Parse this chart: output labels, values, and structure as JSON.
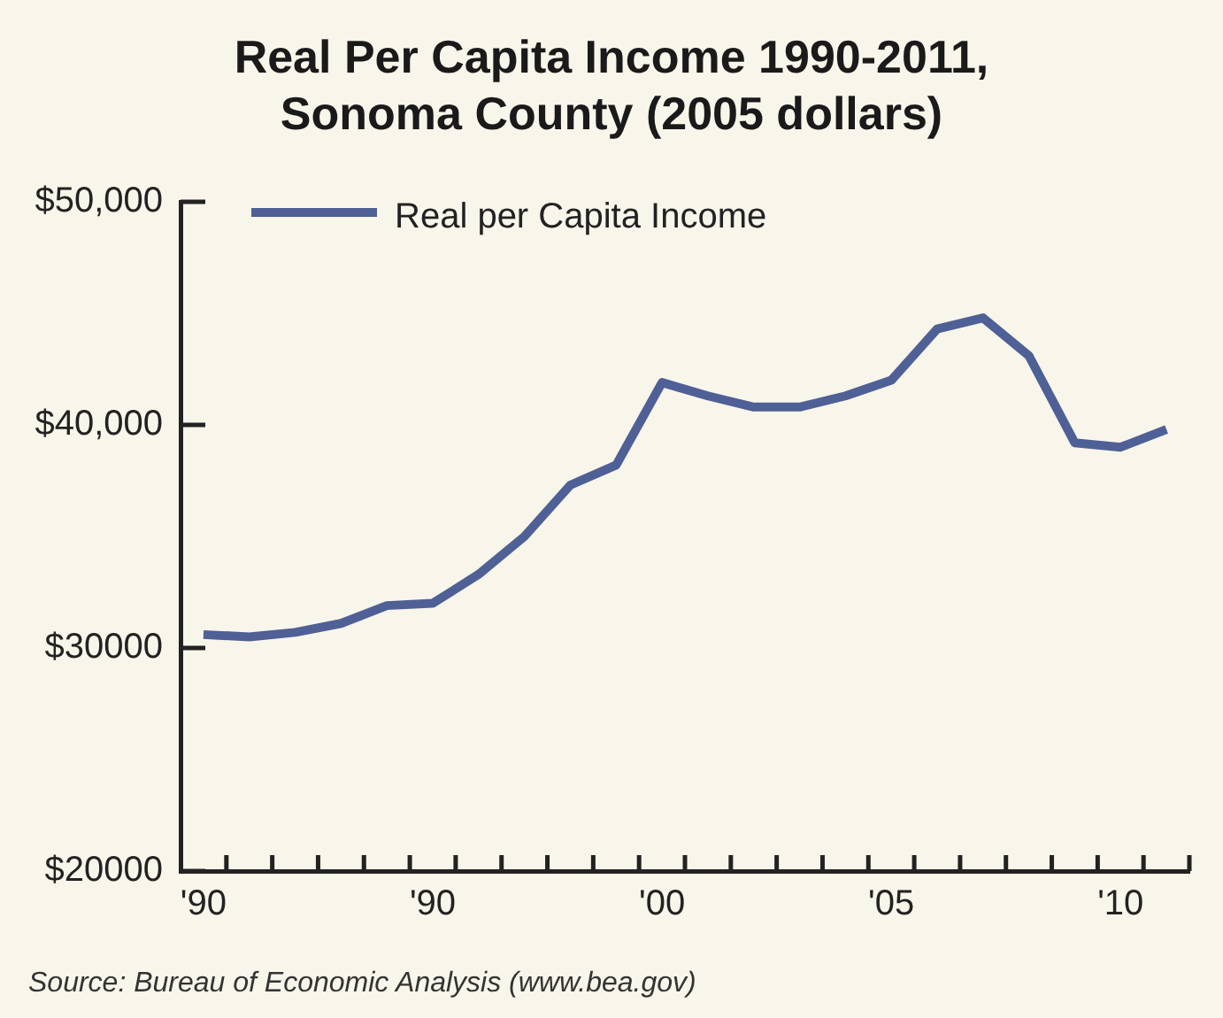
{
  "chart_data": {
    "type": "line",
    "title": "Real Per Capita Income 1990-2011, Sonoma County (2005 dollars)",
    "categories": [
      "'90",
      null,
      null,
      null,
      null,
      "'90",
      null,
      null,
      null,
      null,
      "'00",
      null,
      null,
      null,
      null,
      "'05",
      null,
      null,
      null,
      null,
      "'10",
      null
    ],
    "series": [
      {
        "name": "Real per Capita Income",
        "color": "#4e6096",
        "values": [
          30600,
          30500,
          30700,
          31100,
          31900,
          32000,
          33300,
          35000,
          37300,
          38200,
          41900,
          41300,
          40800,
          40800,
          41300,
          42000,
          44300,
          44800,
          43100,
          39200,
          39000,
          39800
        ]
      }
    ],
    "ylim": [
      20000,
      50000
    ],
    "yticks": [
      {
        "value": 20000,
        "label": "$20000"
      },
      {
        "value": 30000,
        "label": "$30000"
      },
      {
        "value": 40000,
        "label": "$40,000"
      },
      {
        "value": 50000,
        "label": "$50,000"
      }
    ],
    "legend": "top left",
    "line_style": "solid",
    "annotations": [
      "Source: Bureau of Economic Analysis (www.bea.gov)"
    ]
  }
}
